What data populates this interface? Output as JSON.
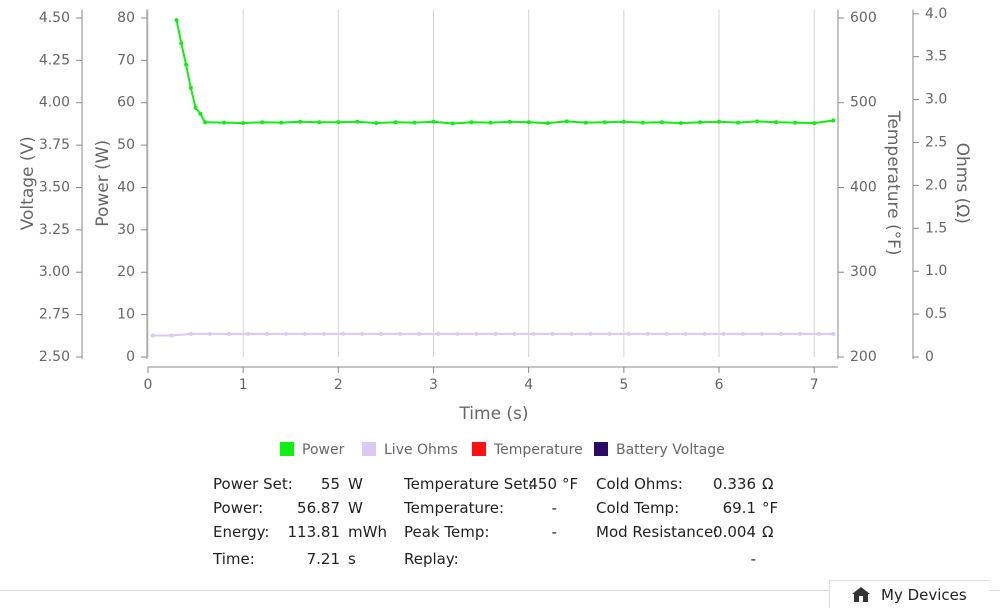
{
  "chart_data": {
    "type": "line",
    "x_label": "Time (s)",
    "xlim": [
      0,
      7.25
    ],
    "xticks": [
      0,
      1,
      2,
      3,
      4,
      5,
      6,
      7
    ],
    "grid": true,
    "y_label": "Power (W)",
    "ylim": [
      0,
      82
    ],
    "yticks": [
      0,
      10,
      20,
      30,
      40,
      50,
      60,
      70,
      80
    ],
    "y2_label": "Temperature (°F)",
    "y2lim": [
      200,
      610
    ],
    "y2ticks": [
      200,
      300,
      400,
      500,
      600
    ],
    "voltage_label": "Voltage (V)",
    "voltage_lim": [
      2.5,
      4.55
    ],
    "voltage_ticks": [
      {
        "value": 2.5,
        "label": "2.50"
      },
      2.75,
      {
        "value": 3,
        "label": "3.00"
      },
      3.25,
      {
        "value": 3.5,
        "label": "3.50"
      },
      3.75,
      {
        "value": 4,
        "label": "4.00"
      },
      4.25,
      {
        "value": 4.5,
        "label": "4.50"
      }
    ],
    "ohms_label": "Ohms (Ω)",
    "ohms_lim": [
      0,
      4.05
    ],
    "ohms_ticks": [
      0,
      0.5,
      {
        "value": 1,
        "label": "1.0"
      },
      1.5,
      {
        "value": 2,
        "label": "2.0"
      },
      2.5,
      {
        "value": 3,
        "label": "3.0"
      },
      3.5,
      {
        "value": 4,
        "label": "4.0"
      }
    ],
    "series": [
      {
        "name": "Power",
        "color": "#11ee11",
        "axis": "y",
        "x": [
          0.3,
          0.35,
          0.4,
          0.45,
          0.5,
          0.55,
          0.6,
          0.8,
          1,
          1.2,
          1.4,
          1.6,
          1.8,
          2,
          2.2,
          2.4,
          2.6,
          2.8,
          3,
          3.2,
          3.4,
          3.6,
          3.8,
          4,
          4.2,
          4.4,
          4.6,
          4.8,
          5,
          5.2,
          5.4,
          5.6,
          5.8,
          6,
          6.2,
          6.4,
          6.6,
          6.8,
          7,
          7.2
        ],
        "values": [
          79.5,
          74,
          69,
          63.5,
          58.8,
          57.4,
          55.4,
          55.3,
          55.2,
          55.4,
          55.3,
          55.5,
          55.4,
          55.4,
          55.5,
          55.2,
          55.4,
          55.3,
          55.5,
          55.1,
          55.4,
          55.3,
          55.5,
          55.4,
          55.2,
          55.6,
          55.3,
          55.4,
          55.5,
          55.3,
          55.4,
          55.2,
          55.4,
          55.5,
          55.3,
          55.6,
          55.4,
          55.3,
          55.2,
          55.8
        ]
      },
      {
        "name": "Live Ohms",
        "color": "#dcc8f4",
        "axis": "ohms",
        "x": [
          0.05,
          0.25,
          0.45,
          0.65,
          0.85,
          1.05,
          1.25,
          1.45,
          1.65,
          1.85,
          2.05,
          2.25,
          2.45,
          2.65,
          2.85,
          3.05,
          3.25,
          3.45,
          3.65,
          3.85,
          4.05,
          4.25,
          4.45,
          4.65,
          4.85,
          5.05,
          5.25,
          5.45,
          5.65,
          5.85,
          6.05,
          6.25,
          6.45,
          6.65,
          6.85,
          7.05,
          7.2
        ],
        "values": [
          0.25,
          0.25,
          0.27,
          0.27,
          0.27,
          0.27,
          0.27,
          0.27,
          0.27,
          0.27,
          0.27,
          0.27,
          0.27,
          0.27,
          0.27,
          0.27,
          0.27,
          0.27,
          0.27,
          0.27,
          0.27,
          0.27,
          0.27,
          0.27,
          0.27,
          0.27,
          0.27,
          0.27,
          0.27,
          0.27,
          0.27,
          0.27,
          0.27,
          0.27,
          0.27,
          0.27,
          0.27
        ]
      },
      {
        "name": "Temperature",
        "color": "#ff1111",
        "axis": "y2",
        "x": [],
        "values": []
      },
      {
        "name": "Battery Voltage",
        "color": "#2a0a66",
        "axis": "voltage",
        "x": [],
        "values": []
      }
    ]
  },
  "info": {
    "rows": [
      [
        {
          "label": "Power Set:",
          "value": 55,
          "unit": "W"
        },
        {
          "label": "Temperature Set:",
          "value": 450,
          "unit": "°F"
        },
        {
          "label": "Cold Ohms:",
          "value": 0.336,
          "unit": "Ω"
        }
      ],
      [
        {
          "label": "Power:",
          "value": 56.87,
          "unit": "W"
        },
        {
          "label": "Temperature:",
          "value": "-"
        },
        {
          "label": "Cold Temp:",
          "value": 69.1,
          "unit": "°F"
        }
      ],
      [
        {
          "label": "Energy:",
          "value": 113.81,
          "unit": "mWh"
        },
        {
          "label": "Peak Temp:",
          "value": "-"
        },
        {
          "label": "Mod Resistance:",
          "value": 0.004,
          "unit": "Ω"
        }
      ],
      [
        {
          "label": "Time:",
          "value": 7.21,
          "unit": "s"
        },
        {
          "label": "Replay:"
        },
        {
          "label": "",
          "value": "-"
        }
      ]
    ]
  },
  "footer": {
    "button": "My Devices"
  }
}
